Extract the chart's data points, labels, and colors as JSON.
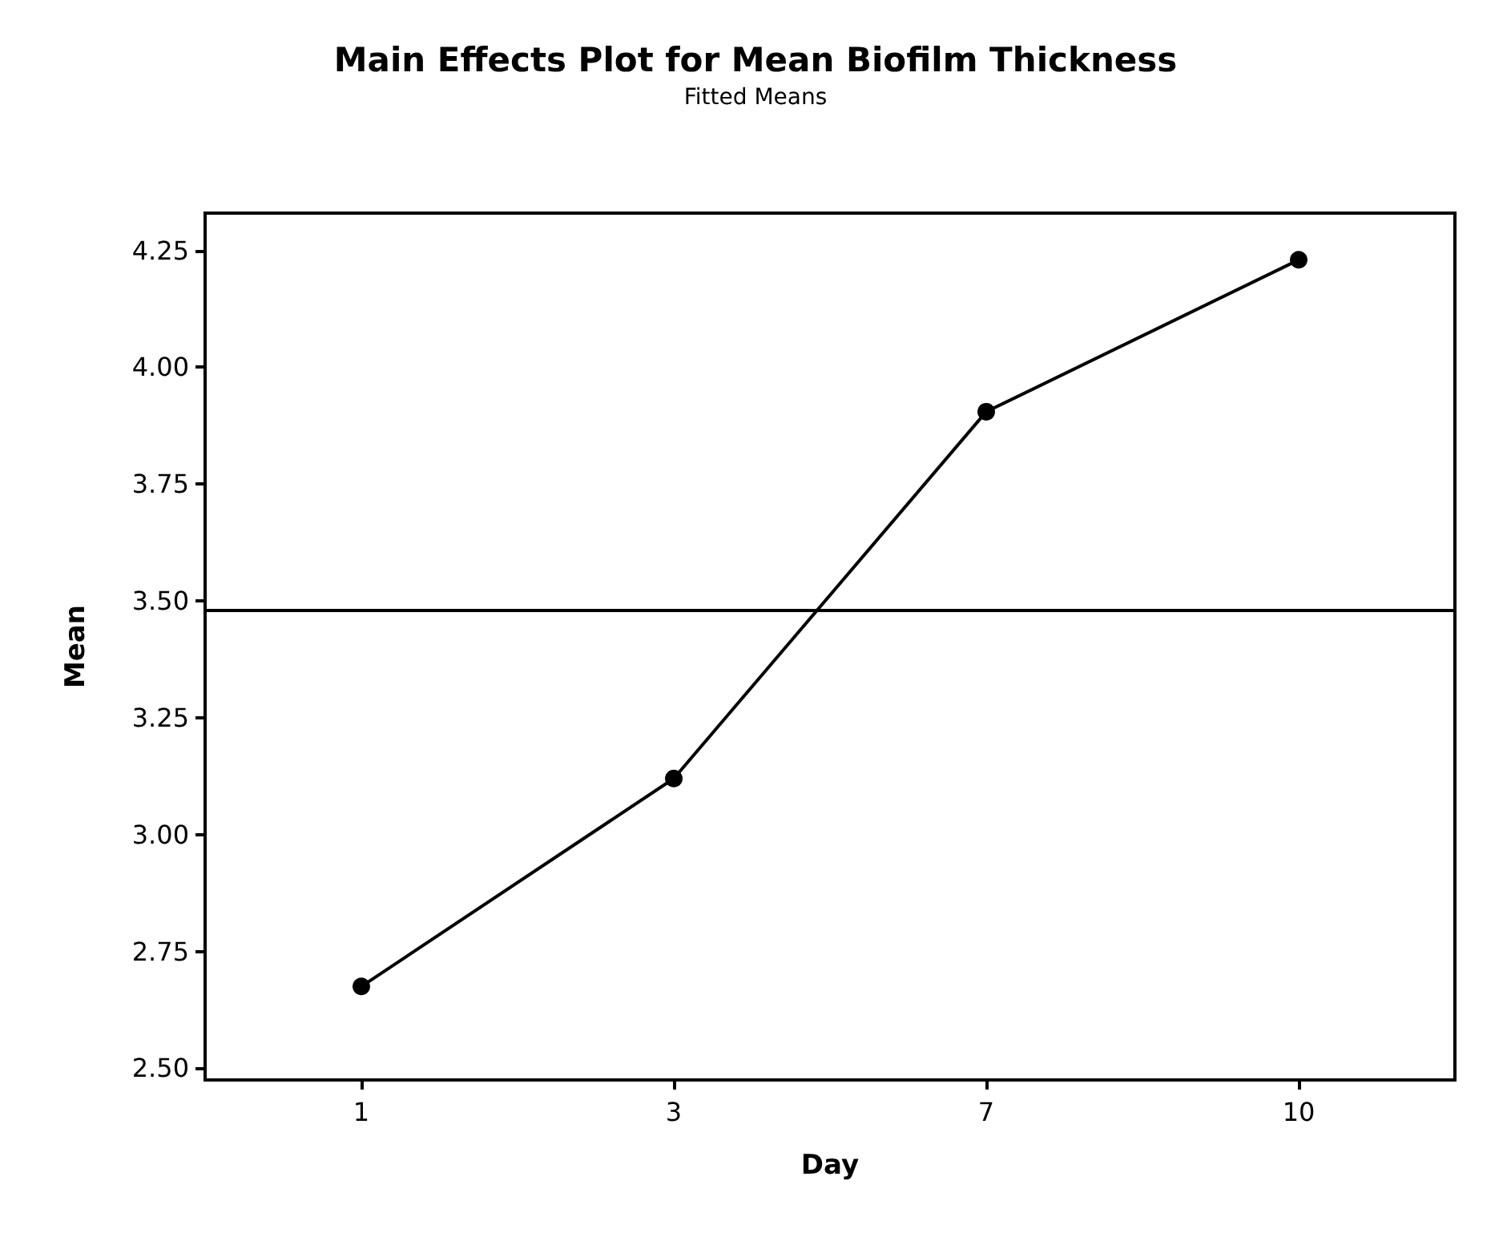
{
  "chart_data": {
    "type": "line",
    "title": "Main Effects Plot for Mean Biofilm Thickness",
    "subtitle": "Fitted Means",
    "xlabel": "Day",
    "ylabel": "Mean",
    "categories": [
      "1",
      "3",
      "7",
      "10"
    ],
    "series": [
      {
        "color": "#000000",
        "values": [
          2.675,
          3.12,
          3.905,
          4.23
        ]
      }
    ],
    "ylim": [
      2.475,
      4.33
    ],
    "yticks": [
      {
        "value": 2.5,
        "label": "2.50"
      },
      2.75,
      {
        "value": 3,
        "label": "3.00"
      },
      3.25,
      {
        "value": 3.5,
        "label": "3.50"
      },
      3.75,
      {
        "value": 4,
        "label": "4.00"
      },
      4.25
    ],
    "ref_lines": [
      {
        "axis": "y",
        "value": 3.484,
        "color": "#000000"
      }
    ],
    "marker": "circle",
    "line_style": "solid",
    "grid": false
  }
}
